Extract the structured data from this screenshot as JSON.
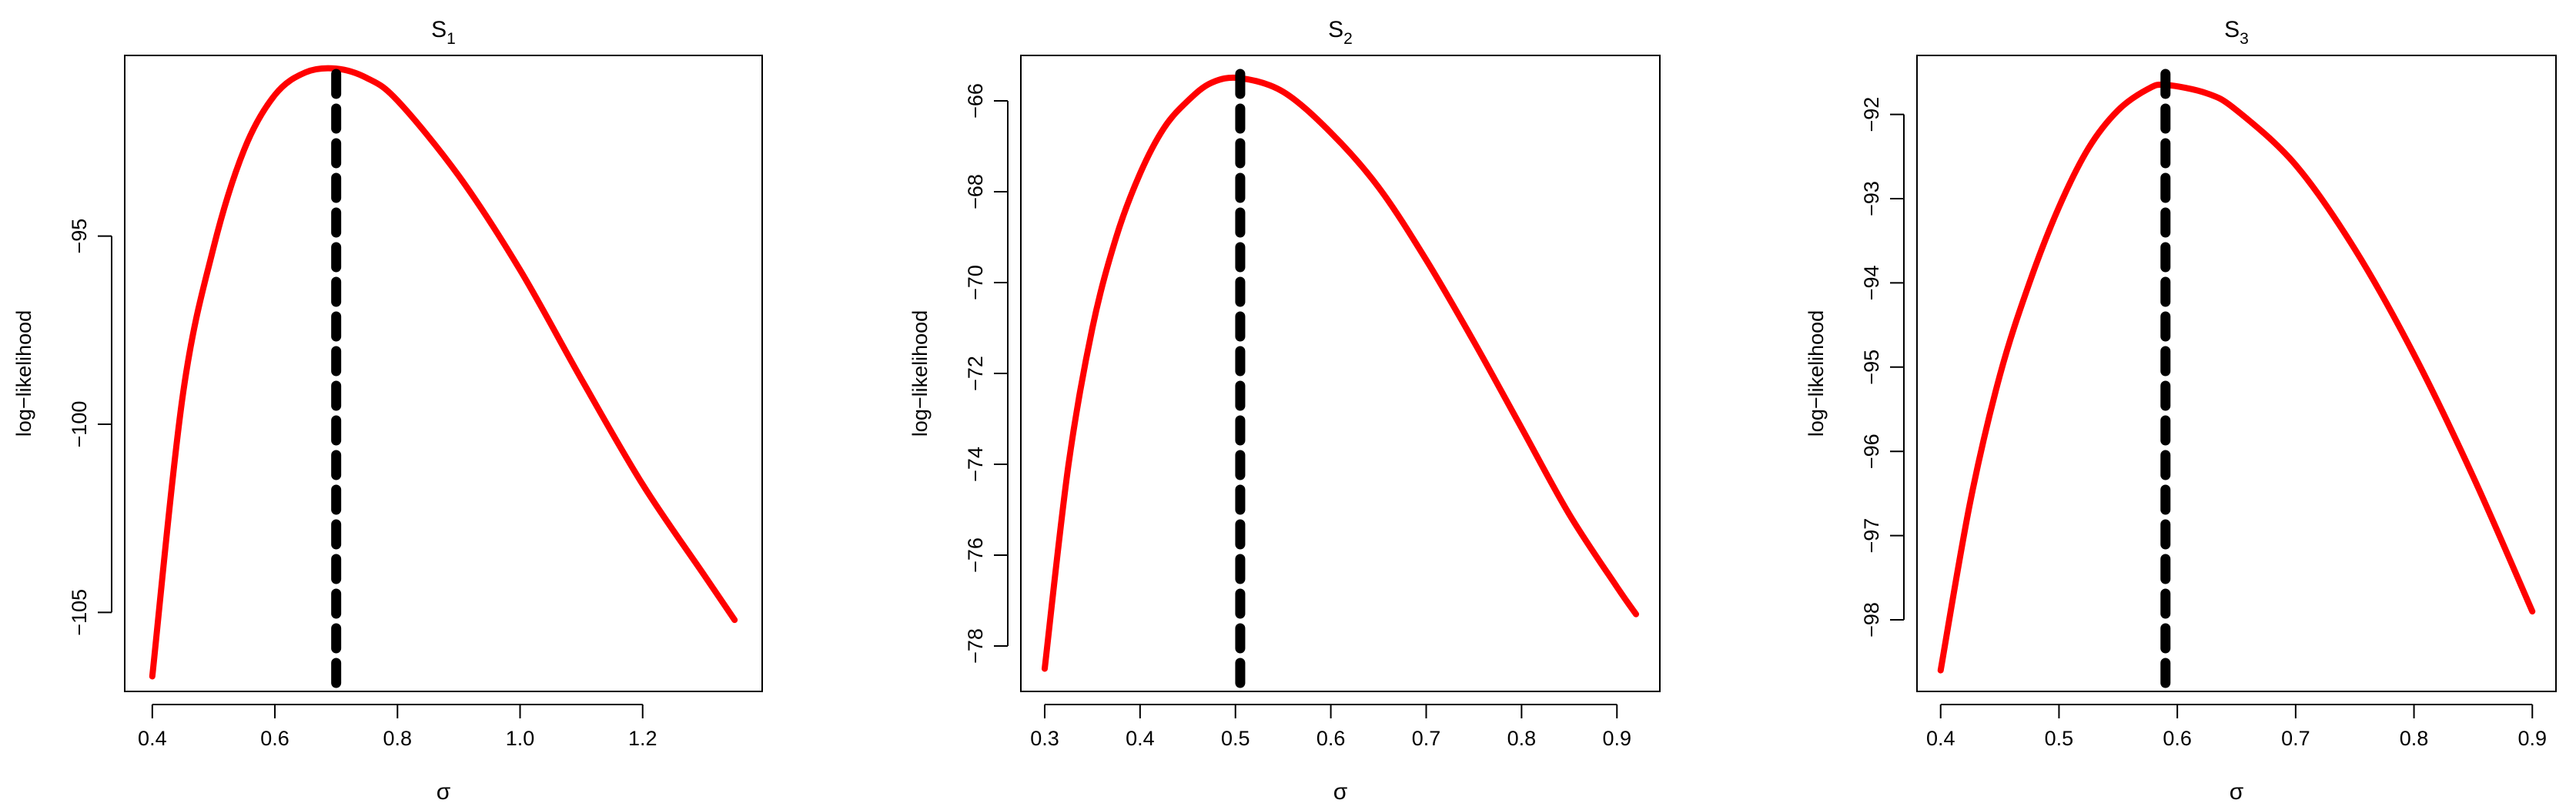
{
  "chart_data": [
    {
      "type": "line",
      "title": "S",
      "title_subscript": "1",
      "xlabel": "σ",
      "ylabel": "log−likelihood",
      "xlim": [
        0.355,
        1.395
      ],
      "ylim": [
        -107.1,
        -90.2
      ],
      "xticks": [
        0.4,
        0.6,
        0.8,
        1.0,
        1.2
      ],
      "xtick_labels": [
        "0.4",
        "0.6",
        "0.8",
        "1.0",
        "1.2"
      ],
      "yticks": [
        -105,
        -100,
        -95
      ],
      "ytick_labels": [
        "−105",
        "−100",
        "−95"
      ],
      "series": [
        {
          "color": "#ff0000",
          "x": [
            0.4,
            0.45,
            0.5,
            0.55,
            0.6,
            0.65,
            0.7,
            0.75,
            0.8,
            0.9,
            1.0,
            1.1,
            1.2,
            1.3,
            1.35
          ],
          "y": [
            -106.7,
            -99.2,
            -95.3,
            -92.7,
            -91.25,
            -90.65,
            -90.55,
            -90.8,
            -91.4,
            -93.4,
            -95.9,
            -98.8,
            -101.6,
            -104.0,
            -105.2
          ]
        }
      ],
      "vline": {
        "x": 0.7,
        "style": "dashed",
        "color": "#000000"
      },
      "grid": false
    },
    {
      "type": "line",
      "title": "S",
      "title_subscript": "2",
      "xlabel": "σ",
      "ylabel": "log−likelihood",
      "xlim": [
        0.275,
        0.945
      ],
      "ylim": [
        -79.0,
        -65.0
      ],
      "xticks": [
        0.3,
        0.4,
        0.5,
        0.6,
        0.7,
        0.8,
        0.9
      ],
      "xtick_labels": [
        "0.3",
        "0.4",
        "0.5",
        "0.6",
        "0.7",
        "0.8",
        "0.9"
      ],
      "yticks": [
        -78,
        -76,
        -74,
        -72,
        -70,
        -68,
        -66
      ],
      "ytick_labels": [
        "−78",
        "−76",
        "−74",
        "−72",
        "−70",
        "−68",
        "−66"
      ],
      "series": [
        {
          "color": "#ff0000",
          "x": [
            0.3,
            0.325,
            0.35,
            0.375,
            0.4,
            0.425,
            0.45,
            0.475,
            0.505,
            0.55,
            0.6,
            0.65,
            0.7,
            0.75,
            0.8,
            0.85,
            0.9,
            0.92
          ],
          "y": [
            -78.5,
            -74.0,
            -71.0,
            -69.0,
            -67.6,
            -66.6,
            -66.0,
            -65.6,
            -65.5,
            -65.8,
            -66.7,
            -67.9,
            -69.5,
            -71.3,
            -73.2,
            -75.1,
            -76.7,
            -77.3
          ]
        }
      ],
      "vline": {
        "x": 0.505,
        "style": "dashed",
        "color": "#000000"
      },
      "grid": false
    },
    {
      "type": "line",
      "title": "S",
      "title_subscript": "3",
      "xlabel": "σ",
      "ylabel": "log−likelihood",
      "xlim": [
        0.38,
        0.92
      ],
      "ylim": [
        -98.85,
        -91.3
      ],
      "xticks": [
        0.4,
        0.5,
        0.6,
        0.7,
        0.8,
        0.9
      ],
      "xtick_labels": [
        "0.4",
        "0.5",
        "0.6",
        "0.7",
        "0.8",
        "0.9"
      ],
      "yticks": [
        -98,
        -97,
        -96,
        -95,
        -94,
        -93,
        -92
      ],
      "ytick_labels": [
        "−98",
        "−97",
        "−96",
        "−95",
        "−94",
        "−93",
        "−92"
      ],
      "series": [
        {
          "color": "#ff0000",
          "x": [
            0.4,
            0.425,
            0.45,
            0.475,
            0.5,
            0.525,
            0.55,
            0.575,
            0.59,
            0.625,
            0.65,
            0.7,
            0.75,
            0.8,
            0.85,
            0.9
          ],
          "y": [
            -98.6,
            -96.6,
            -95.1,
            -94.0,
            -93.1,
            -92.4,
            -91.95,
            -91.7,
            -91.65,
            -91.75,
            -91.95,
            -92.6,
            -93.6,
            -94.85,
            -96.3,
            -97.9
          ]
        }
      ],
      "vline": {
        "x": 0.59,
        "style": "dashed",
        "color": "#000000"
      },
      "grid": false
    }
  ]
}
